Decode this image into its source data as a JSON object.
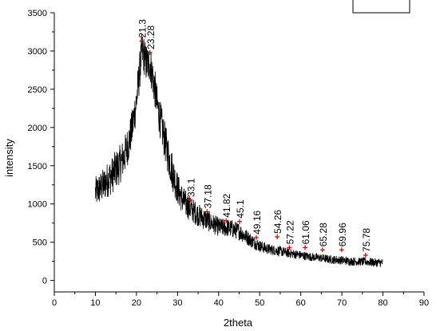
{
  "chart_data": {
    "type": "line",
    "title": "",
    "xlabel": "2theta",
    "ylabel": "intensity",
    "xlim": [
      0,
      90
    ],
    "ylim": [
      -150,
      3500
    ],
    "x_ticks": [
      0,
      10,
      20,
      30,
      40,
      50,
      60,
      70,
      80,
      90
    ],
    "y_ticks": [
      0,
      500,
      1000,
      1500,
      2000,
      2500,
      3000,
      3500
    ],
    "grid": false,
    "legend": "empty box at top-right",
    "series": [
      {
        "color": "#000000",
        "x": [
          10,
          11,
          12,
          13,
          14,
          15,
          16,
          17,
          18,
          19,
          20,
          20.5,
          21,
          21.3,
          21.8,
          22.3,
          22.8,
          23.28,
          23.8,
          24.5,
          25,
          26,
          27,
          28,
          29,
          30,
          31,
          32,
          33.1,
          34,
          35,
          36,
          37.18,
          38,
          39,
          40,
          41,
          41.82,
          43,
          44,
          45.1,
          46,
          47,
          48,
          49.16,
          50,
          52,
          54.26,
          56,
          57.22,
          59,
          61.06,
          63,
          65.28,
          67,
          69.96,
          72,
          75.78,
          78,
          80
        ],
        "values": [
          1150,
          1200,
          1250,
          1320,
          1370,
          1450,
          1520,
          1620,
          1780,
          2000,
          2350,
          2600,
          2850,
          3000,
          2950,
          2850,
          2820,
          2850,
          2700,
          2500,
          2300,
          2050,
          1800,
          1580,
          1380,
          1200,
          1080,
          1000,
          940,
          900,
          860,
          820,
          790,
          760,
          730,
          700,
          690,
          690,
          680,
          660,
          640,
          600,
          560,
          520,
          480,
          450,
          410,
          390,
          370,
          355,
          340,
          320,
          305,
          290,
          275,
          265,
          250,
          245,
          235,
          230
        ]
      }
    ],
    "noise_amplitude": 160,
    "peak_markers": [
      {
        "label": "21.3",
        "x": 21.3,
        "y": 3130
      },
      {
        "label": "23.28",
        "x": 23.28,
        "y": 2980
      },
      {
        "label": "33.1",
        "x": 33.1,
        "y": 1050
      },
      {
        "label": "37.18",
        "x": 37.18,
        "y": 900
      },
      {
        "label": "41.82",
        "x": 41.82,
        "y": 780
      },
      {
        "label": "45.1",
        "x": 45.1,
        "y": 770
      },
      {
        "label": "49.16",
        "x": 49.16,
        "y": 560
      },
      {
        "label": "54.26",
        "x": 54.26,
        "y": 570
      },
      {
        "label": "57.22",
        "x": 57.22,
        "y": 430
      },
      {
        "label": "61.06",
        "x": 61.06,
        "y": 430
      },
      {
        "label": "65.28",
        "x": 65.28,
        "y": 400
      },
      {
        "label": "69.96",
        "x": 69.96,
        "y": 400
      },
      {
        "label": "75.78",
        "x": 75.78,
        "y": 330
      }
    ],
    "colors": {
      "line": "#000000",
      "marker": "#cc0000",
      "axis": "#000000"
    }
  }
}
